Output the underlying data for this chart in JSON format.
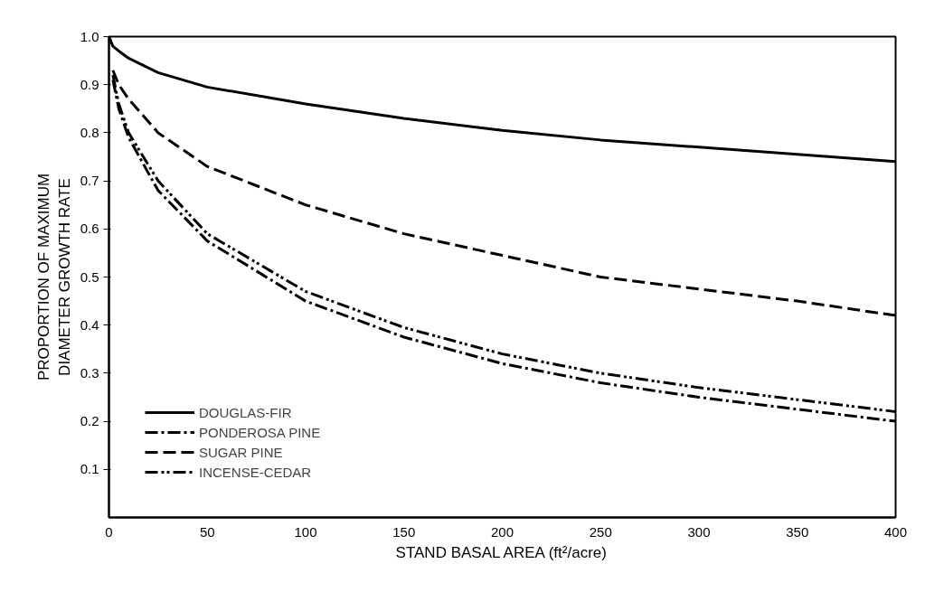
{
  "chart_data": {
    "type": "line",
    "xlabel": "STAND BASAL AREA (ft²/acre)",
    "ylabel": "PROPORTION OF MAXIMUM\nDIAMETER GROWTH RATE",
    "xlim": [
      0,
      400
    ],
    "ylim": [
      0,
      1.0
    ],
    "xticks": [
      0,
      50,
      100,
      150,
      200,
      250,
      300,
      350,
      400
    ],
    "yticks": [
      0.1,
      0.2,
      0.3,
      0.4,
      0.5,
      0.6,
      0.7,
      0.8,
      0.9,
      {
        "value": 1.0,
        "label": "1.0"
      }
    ],
    "grid": false,
    "legend": "bottom left",
    "marker": "none",
    "series": [
      {
        "name": "DOUGLAS-FIR",
        "color": "#000000",
        "line_style": "solid",
        "x": [
          0,
          2,
          5,
          10,
          25,
          50,
          100,
          150,
          200,
          250,
          300,
          350,
          400
        ],
        "values": [
          1.0,
          0.98,
          0.97,
          0.955,
          0.925,
          0.895,
          0.86,
          0.83,
          0.805,
          0.785,
          0.77,
          0.755,
          0.74
        ]
      },
      {
        "name": "PONDEROSA PINE",
        "color": "#000000",
        "line_style": "dashdot",
        "x": [
          2,
          5,
          10,
          25,
          50,
          100,
          150,
          200,
          250,
          300,
          350,
          400
        ],
        "values": [
          0.91,
          0.85,
          0.79,
          0.68,
          0.575,
          0.45,
          0.375,
          0.32,
          0.28,
          0.25,
          0.225,
          0.2
        ]
      },
      {
        "name": "SUGAR PINE",
        "color": "#000000",
        "line_style": "dashed",
        "x": [
          2,
          5,
          10,
          25,
          50,
          100,
          150,
          200,
          250,
          300,
          350,
          400
        ],
        "values": [
          0.93,
          0.9,
          0.87,
          0.8,
          0.73,
          0.65,
          0.59,
          0.545,
          0.5,
          0.475,
          0.45,
          0.42
        ]
      },
      {
        "name": "INCENSE-CEDAR",
        "color": "#000000",
        "line_style": "dashdotdot",
        "x": [
          2,
          5,
          10,
          25,
          50,
          100,
          150,
          200,
          250,
          300,
          350,
          400
        ],
        "values": [
          0.92,
          0.86,
          0.8,
          0.7,
          0.59,
          0.47,
          0.395,
          0.34,
          0.3,
          0.27,
          0.245,
          0.22
        ]
      }
    ]
  }
}
